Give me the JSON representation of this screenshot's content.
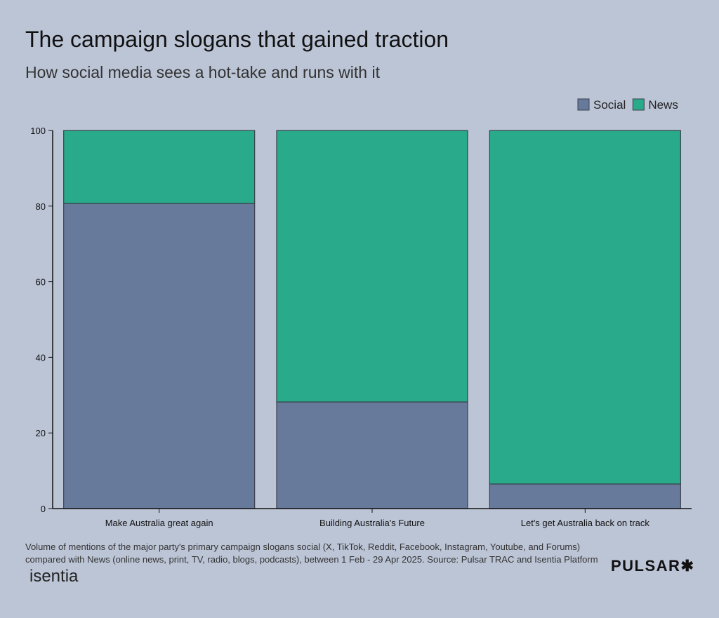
{
  "title": "The campaign slogans that gained traction",
  "subtitle": "How social media sees a hot-take and runs with it",
  "footnote": "Volume of mentions of the major party's primary campaign slogans social (X, TikTok, Reddit, Facebook, Instagram, Youtube, and Forums) compared with News (online news, print, TV, radio, blogs, podcasts), between 1 Feb - 29 Apr 2025. Source: Pulsar TRAC and Isentia Platform",
  "logos": {
    "left": "isentia",
    "right": "PULSAR✱"
  },
  "chart_data": {
    "type": "bar",
    "stacked": true,
    "categories": [
      "Make Australia great again",
      "Building Australia's Future",
      "Let's get Australia back on track"
    ],
    "series": [
      {
        "name": "Social",
        "values": [
          80.7,
          28.2,
          6.5
        ],
        "color": "#687a9c"
      },
      {
        "name": "News",
        "values": [
          19.3,
          71.8,
          93.5
        ],
        "color": "#29aa8a"
      }
    ],
    "ylim": [
      0,
      100
    ],
    "yticks": [
      0,
      20,
      40,
      60,
      80,
      100
    ],
    "legend": "top-right",
    "grid": false
  }
}
